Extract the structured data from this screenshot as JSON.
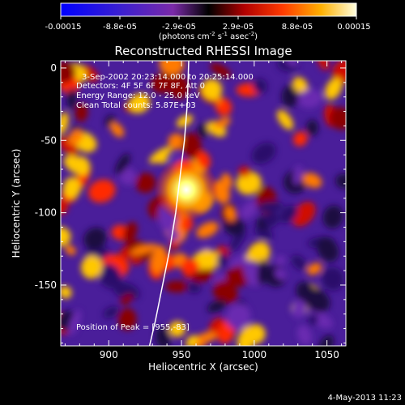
{
  "colorbar": {
    "tick_labels": [
      "-0.00015",
      "-8.8e-05",
      "-2.9e-05",
      "2.9e-05",
      "8.8e-05",
      "0.00015"
    ],
    "label_main": "(photons cm",
    "label_exp1": "-2",
    "label_s": " s",
    "label_exp2": "-1",
    "label_asec": " asec",
    "label_exp3": "-2",
    "label_end": ")"
  },
  "chart_data": {
    "type": "heatmap",
    "title": "Reconstructed RHESSI Image",
    "xlabel": "Heliocentric X (arcsec)",
    "ylabel": "Heliocentric Y (arcsec)",
    "xlim": [
      867,
      1063
    ],
    "ylim": [
      -192,
      5
    ],
    "x_ticks": [
      900,
      950,
      1000,
      1050
    ],
    "y_ticks": [
      0,
      -50,
      -100,
      -150
    ],
    "color_range": [
      -0.00015,
      0.00015
    ],
    "peak": [
      955,
      -83
    ],
    "limb_line": [
      [
        928,
        -192
      ],
      [
        932,
        -175
      ],
      [
        937,
        -150
      ],
      [
        942,
        -125
      ],
      [
        946,
        -100
      ],
      [
        949,
        -75
      ],
      [
        952,
        -50
      ],
      [
        954,
        -25
      ],
      [
        955,
        5
      ]
    ],
    "annotations": {
      "time": "3-Sep-2002 20:23:14.000 to 20:25:14.000",
      "detectors": "Detectors: 4F 5F 6F 7F 8F, Att 0",
      "energy": "Energy Range: 12.0 - 25.0 keV",
      "clean": "Clean     Total counts: 5.87E+03",
      "peak_text": "Position of Peak = [955,-83]"
    }
  },
  "footer": {
    "date": "4-May-2013 11:23"
  }
}
